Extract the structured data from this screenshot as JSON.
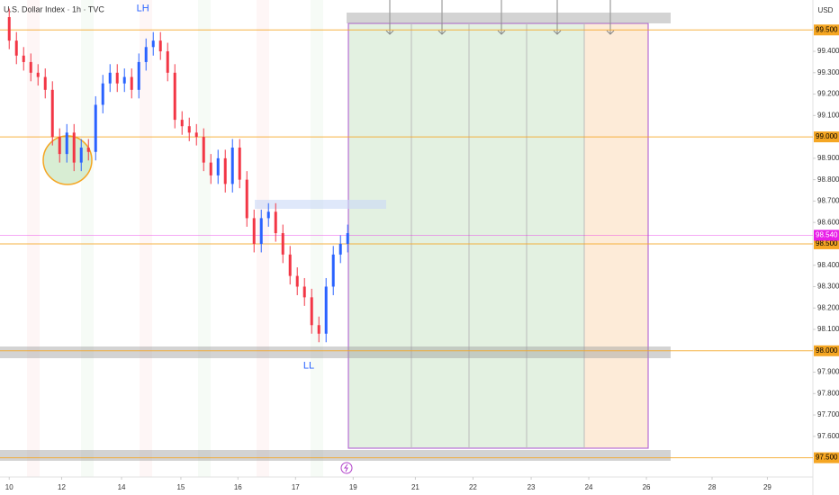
{
  "chart_data": {
    "type": "candlestick",
    "title": "U.S. Dollar Index · 1h · TVC",
    "currency": "USD",
    "annotations": [
      {
        "text": "LH",
        "x": 2.32,
        "y": 99.6
      },
      {
        "text": "LL",
        "x": 5.2,
        "y": 97.93
      }
    ],
    "up_color": "#2962ff",
    "down_color": "#f23645",
    "x": [
      0,
      0.125,
      0.25,
      0.375,
      0.5,
      0.625,
      0.75,
      0.875,
      1,
      1.125,
      1.25,
      1.375,
      1.5,
      1.625,
      1.75,
      1.875,
      2,
      2.125,
      2.25,
      2.375,
      2.5,
      2.625,
      2.75,
      2.875,
      3,
      3.125,
      3.25,
      3.375,
      3.5,
      3.625,
      3.75,
      3.875,
      4,
      4.125,
      4.25,
      4.375,
      4.5,
      4.625,
      4.75,
      4.875,
      5,
      5.125,
      5.25,
      5.375,
      5.5,
      5.625,
      5.75,
      5.875
    ],
    "open": [
      99.56,
      99.45,
      99.38,
      99.35,
      99.3,
      99.28,
      99.22,
      99.0,
      98.92,
      99.02,
      98.88,
      98.95,
      98.93,
      99.15,
      99.25,
      99.3,
      99.25,
      99.28,
      99.22,
      99.35,
      99.42,
      99.45,
      99.4,
      99.3,
      99.08,
      99.05,
      99.02,
      99.0,
      98.88,
      98.82,
      98.9,
      98.78,
      98.95,
      98.8,
      98.62,
      98.5,
      98.62,
      98.65,
      98.55,
      98.45,
      98.35,
      98.3,
      98.25,
      98.12,
      98.08,
      98.3,
      98.45,
      98.5
    ],
    "high": [
      99.6,
      99.49,
      99.42,
      99.39,
      99.34,
      99.32,
      99.26,
      99.04,
      99.06,
      99.06,
      98.99,
      98.99,
      99.19,
      99.29,
      99.34,
      99.34,
      99.32,
      99.32,
      99.39,
      99.46,
      99.49,
      99.49,
      99.44,
      99.34,
      99.12,
      99.09,
      99.06,
      99.04,
      98.92,
      98.94,
      98.94,
      98.99,
      98.99,
      98.84,
      98.66,
      98.66,
      98.69,
      98.69,
      98.59,
      98.49,
      98.39,
      98.34,
      98.29,
      98.16,
      98.34,
      98.49,
      98.54,
      98.59
    ],
    "low": [
      99.41,
      99.34,
      99.31,
      99.26,
      99.24,
      99.18,
      98.96,
      98.88,
      98.88,
      98.84,
      98.84,
      98.89,
      98.89,
      99.11,
      99.21,
      99.21,
      99.21,
      99.18,
      99.18,
      99.31,
      99.38,
      99.36,
      99.26,
      99.04,
      99.01,
      98.98,
      98.96,
      98.84,
      98.78,
      98.78,
      98.74,
      98.74,
      98.76,
      98.58,
      98.46,
      98.46,
      98.58,
      98.51,
      98.41,
      98.31,
      98.26,
      98.21,
      98.08,
      98.04,
      98.04,
      98.26,
      98.41,
      98.46
    ],
    "close": [
      99.45,
      99.38,
      99.35,
      99.3,
      99.28,
      99.22,
      99.0,
      98.92,
      99.02,
      98.88,
      98.95,
      98.93,
      99.15,
      99.25,
      99.3,
      99.25,
      99.28,
      99.22,
      99.35,
      99.42,
      99.45,
      99.4,
      99.3,
      99.08,
      99.05,
      99.02,
      99.0,
      98.88,
      98.82,
      98.9,
      98.78,
      98.95,
      98.8,
      98.62,
      98.5,
      98.62,
      98.65,
      98.55,
      98.45,
      98.35,
      98.3,
      98.25,
      98.12,
      98.08,
      98.3,
      98.45,
      98.5,
      98.55
    ],
    "xlim": [
      -0.16,
      13.95
    ],
    "ylim": [
      97.41,
      99.64
    ],
    "xticks": [
      {
        "value": 0,
        "label": "10"
      },
      {
        "value": 0.91,
        "label": "12"
      },
      {
        "value": 1.95,
        "label": "14"
      },
      {
        "value": 2.98,
        "label": "15"
      },
      {
        "value": 3.97,
        "label": "16"
      },
      {
        "value": 4.97,
        "label": "17"
      },
      {
        "value": 5.97,
        "label": "19"
      },
      {
        "value": 7.05,
        "label": "21"
      },
      {
        "value": 8.05,
        "label": "22"
      },
      {
        "value": 9.06,
        "label": "23"
      },
      {
        "value": 10.06,
        "label": "24"
      },
      {
        "value": 11.06,
        "label": "26"
      },
      {
        "value": 12.2,
        "label": "28"
      },
      {
        "value": 13.16,
        "label": "29"
      }
    ],
    "yticks": [
      {
        "value": 99.4,
        "label": "99.400"
      },
      {
        "value": 99.3,
        "label": "99.300"
      },
      {
        "value": 99.2,
        "label": "99.200"
      },
      {
        "value": 99.1,
        "label": "99.100"
      },
      {
        "value": 98.9,
        "label": "98.900"
      },
      {
        "value": 98.8,
        "label": "98.800"
      },
      {
        "value": 98.7,
        "label": "98.700"
      },
      {
        "value": 98.6,
        "label": "98.600"
      },
      {
        "value": 98.4,
        "label": "98.400"
      },
      {
        "value": 98.3,
        "label": "98.300"
      },
      {
        "value": 98.2,
        "label": "98.200"
      },
      {
        "value": 98.1,
        "label": "98.100"
      },
      {
        "value": 97.9,
        "label": "97.900"
      },
      {
        "value": 97.8,
        "label": "97.800"
      },
      {
        "value": 97.7,
        "label": "97.700"
      },
      {
        "value": 97.6,
        "label": "97.600"
      }
    ],
    "levels": [
      {
        "value": 99.5,
        "label": "99.500"
      },
      {
        "value": 99.0,
        "label": "99.000"
      },
      {
        "value": 98.5,
        "label": "98.500"
      },
      {
        "value": 98.0,
        "label": "98.000"
      },
      {
        "value": 97.5,
        "label": "97.500"
      }
    ],
    "level_color": "#f5a623",
    "last_price": {
      "value": 98.54,
      "label": "98.540"
    },
    "last_price_color": "#e91ee8"
  }
}
